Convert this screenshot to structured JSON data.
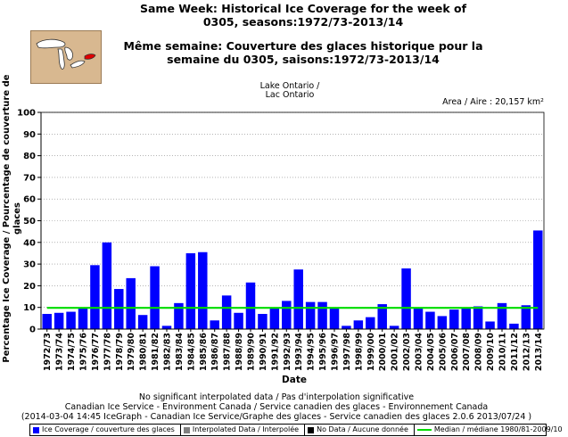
{
  "title_en": "Same Week: Historical Ice Coverage for the week of 0305, seasons:1972/73-2013/14",
  "title_en_line1": "Same Week: Historical Ice Coverage for the week of",
  "title_en_line2": "0305, seasons:1972/73-2013/14",
  "title_fr_line1": "Même semaine: Couverture des glaces historique pour la",
  "title_fr_line2": "semaine du 0305, saisons:1972/73-2013/14",
  "lake_en": "Lake Ontario /",
  "lake_fr": "Lac Ontario",
  "area_label": "Area / Aire : 20,157 km²",
  "footer": {
    "line1": "No significant interpolated data / Pas d'interpolation significative",
    "line2": "Canadian Ice Service - Environment Canada / Service canadien des glaces - Environnement Canada",
    "line3": "(2014-03-04 14:45 IceGraph - Canadian Ice Service/Graphe des glaces - Service canadien des glaces 2.0.6 2013/07/24 )"
  },
  "legend": {
    "ice": "Ice Coverage / couverture des glaces",
    "interp": "Interpolated Data / Interpolée",
    "nodata": "No Data / Aucune donnée",
    "median": "Median / médiane 1980/81-2009/10"
  },
  "colors": {
    "bar": "#0000ff",
    "median": "#00dd00",
    "interp": "#808080",
    "nodata": "#000000",
    "grid": "#888888"
  },
  "chart_data": {
    "type": "bar",
    "title": "Same Week: Historical Ice Coverage for the week of 0305, seasons:1972/73-2013/14",
    "xlabel": "Date",
    "ylabel": "Percentage Ice Coverage / Pourcentage de couverture de glaces",
    "ylim": [
      0,
      100
    ],
    "yticks": [
      0,
      10,
      20,
      30,
      40,
      50,
      60,
      70,
      80,
      90,
      100
    ],
    "grid": true,
    "legend_position": "bottom",
    "categories": [
      "1972/73",
      "1973/74",
      "1974/75",
      "1975/76",
      "1976/77",
      "1977/78",
      "1978/79",
      "1979/80",
      "1980/81",
      "1981/82",
      "1982/83",
      "1983/84",
      "1984/85",
      "1985/86",
      "1986/87",
      "1987/88",
      "1988/89",
      "1989/90",
      "1990/91",
      "1991/92",
      "1992/93",
      "1993/94",
      "1994/95",
      "1995/96",
      "1996/97",
      "1997/98",
      "1998/99",
      "1999/00",
      "2000/01",
      "2001/02",
      "2002/03",
      "2003/04",
      "2004/05",
      "2005/06",
      "2006/07",
      "2007/08",
      "2008/09",
      "2009/10",
      "2010/11",
      "2011/12",
      "2012/13",
      "2013/14"
    ],
    "series": [
      {
        "name": "Ice Coverage / couverture des glaces",
        "values": [
          7,
          7.5,
          8,
          10,
          29.5,
          40,
          18.5,
          23.5,
          6.5,
          29,
          1.5,
          12,
          35,
          35.5,
          4,
          15.5,
          7.5,
          21.5,
          7,
          10,
          13,
          27.5,
          12.5,
          12.5,
          9.5,
          1.5,
          4,
          5.5,
          11.5,
          1.5,
          28,
          9.5,
          8,
          6,
          9,
          9.5,
          10.5,
          3.5,
          12,
          2.5,
          11,
          45.5
        ]
      }
    ],
    "median": 9.8
  }
}
